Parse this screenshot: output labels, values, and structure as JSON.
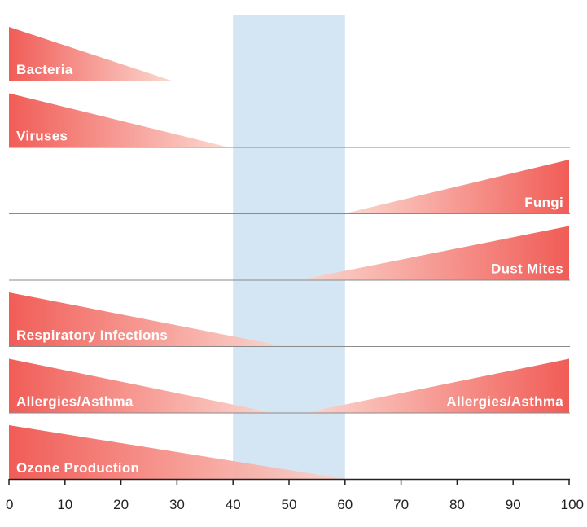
{
  "chart_data": {
    "type": "area",
    "title": "",
    "xlabel": "",
    "ylabel": "",
    "xlim": [
      0,
      100
    ],
    "x_ticks": [
      0,
      10,
      20,
      30,
      40,
      50,
      60,
      70,
      80,
      90,
      100
    ],
    "grid": false,
    "highlight_band": {
      "from": 40,
      "to": 60,
      "color": "#d4e6f4"
    },
    "colors": {
      "strong": "#f0504a",
      "light": "#fbd6cd",
      "band_overlap": "#dcc2c8"
    },
    "rows": [
      {
        "label": "Bacteria",
        "segments": [
          {
            "from": 0,
            "to": 29,
            "direction": "decreasing",
            "label": "Bacteria",
            "label_side": "left"
          }
        ]
      },
      {
        "label": "Viruses",
        "segments": [
          {
            "from": 0,
            "to": 39,
            "direction": "decreasing",
            "label": "Viruses",
            "label_side": "left"
          }
        ]
      },
      {
        "label": "Fungi",
        "segments": [
          {
            "from": 60,
            "to": 100,
            "direction": "increasing",
            "label": "Fungi",
            "label_side": "right"
          }
        ]
      },
      {
        "label": "Dust Mites",
        "segments": [
          {
            "from": 52,
            "to": 100,
            "direction": "increasing",
            "label": "Dust Mites",
            "label_side": "right"
          }
        ]
      },
      {
        "label": "Respiratory Infections",
        "segments": [
          {
            "from": 0,
            "to": 49,
            "direction": "decreasing",
            "label": "Respiratory Infections",
            "label_side": "left"
          }
        ]
      },
      {
        "label": "Allergies/Asthma",
        "segments": [
          {
            "from": 0,
            "to": 47,
            "direction": "decreasing",
            "label": "Allergies/Asthma",
            "label_side": "left"
          },
          {
            "from": 53,
            "to": 100,
            "direction": "increasing",
            "label": "Allergies/Asthma",
            "label_side": "right"
          }
        ]
      },
      {
        "label": "Ozone Production",
        "segments": [
          {
            "from": 0,
            "to": 60,
            "direction": "decreasing",
            "label": "Ozone Production",
            "label_side": "left"
          }
        ]
      }
    ]
  }
}
